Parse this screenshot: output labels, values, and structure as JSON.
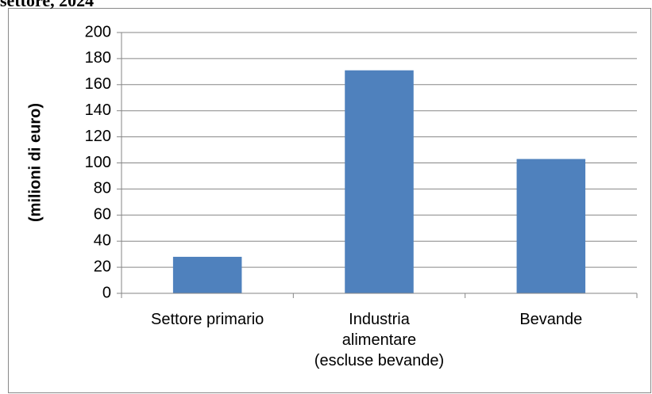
{
  "chart_data": {
    "type": "bar",
    "title": "settore, 2024",
    "y_label": "(milioni di euro)",
    "categories": [
      "Settore primario",
      "Industria\nalimentare\n(escluse bevande)",
      "Bevande"
    ],
    "values": [
      28,
      171,
      103
    ],
    "color": "#4f81bd",
    "ylim": [
      0,
      200
    ],
    "yticks": [
      0,
      20,
      40,
      60,
      80,
      100,
      120,
      140,
      160,
      180,
      200
    ],
    "grid": true
  }
}
